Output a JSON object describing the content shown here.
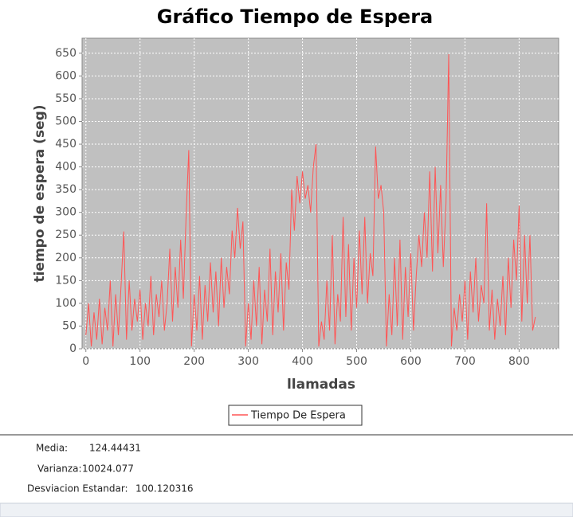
{
  "chart_data": {
    "type": "line",
    "title": "Gráfico Tiempo de Espera",
    "x_label": "llamadas",
    "y_label": "tiempo de espera (seg)",
    "x": [
      0,
      5,
      10,
      15,
      20,
      25,
      30,
      35,
      40,
      45,
      50,
      55,
      60,
      65,
      70,
      75,
      80,
      85,
      90,
      95,
      100,
      105,
      110,
      115,
      120,
      125,
      130,
      135,
      140,
      145,
      150,
      155,
      160,
      165,
      170,
      175,
      180,
      185,
      190,
      195,
      200,
      205,
      210,
      215,
      220,
      225,
      230,
      235,
      240,
      245,
      250,
      255,
      260,
      265,
      270,
      275,
      280,
      285,
      290,
      295,
      300,
      305,
      310,
      315,
      320,
      325,
      330,
      335,
      340,
      345,
      350,
      355,
      360,
      365,
      370,
      375,
      380,
      385,
      390,
      395,
      400,
      405,
      410,
      415,
      420,
      425,
      430,
      435,
      440,
      445,
      450,
      455,
      460,
      465,
      470,
      475,
      480,
      485,
      490,
      495,
      500,
      505,
      510,
      515,
      520,
      525,
      530,
      535,
      540,
      545,
      550,
      555,
      560,
      565,
      570,
      575,
      580,
      585,
      590,
      595,
      600,
      605,
      610,
      615,
      620,
      625,
      630,
      635,
      640,
      645,
      650,
      655,
      660,
      665,
      670,
      675,
      680,
      685,
      690,
      695,
      700,
      705,
      710,
      715,
      720,
      725,
      730,
      735,
      740,
      745,
      750,
      755,
      760,
      765,
      770,
      775,
      780,
      785,
      790,
      795,
      800,
      805,
      810,
      815,
      820,
      825,
      830
    ],
    "series": [
      {
        "name": "Tiempo De Espera",
        "color": "#ff5555",
        "values": [
          30,
          100,
          5,
          80,
          20,
          110,
          10,
          90,
          40,
          150,
          5,
          120,
          30,
          140,
          258,
          20,
          150,
          40,
          110,
          60,
          130,
          20,
          100,
          50,
          160,
          30,
          120,
          70,
          150,
          40,
          100,
          220,
          60,
          180,
          90,
          240,
          110,
          290,
          437,
          5,
          120,
          40,
          160,
          20,
          140,
          60,
          190,
          80,
          170,
          50,
          200,
          90,
          180,
          120,
          260,
          200,
          310,
          220,
          280,
          5,
          100,
          20,
          150,
          50,
          180,
          10,
          130,
          60,
          220,
          30,
          170,
          80,
          210,
          40,
          190,
          130,
          350,
          260,
          380,
          320,
          390,
          330,
          360,
          300,
          400,
          450,
          5,
          60,
          20,
          150,
          40,
          250,
          10,
          120,
          60,
          290,
          70,
          230,
          40,
          200,
          90,
          260,
          120,
          290,
          100,
          210,
          160,
          445,
          330,
          360,
          300,
          5,
          120,
          30,
          200,
          50,
          240,
          20,
          180,
          70,
          210,
          40,
          160,
          250,
          180,
          300,
          200,
          390,
          170,
          400,
          210,
          360,
          180,
          320,
          648,
          5,
          90,
          40,
          120,
          60,
          150,
          20,
          170,
          80,
          200,
          60,
          140,
          100,
          320,
          40,
          130,
          20,
          110,
          50,
          160,
          30,
          200,
          90,
          240,
          150,
          315,
          60,
          250,
          100,
          250,
          40,
          70
        ]
      }
    ],
    "xlim": [
      -7,
      873
    ],
    "ylim": [
      0,
      683
    ],
    "xticks": [
      0,
      100,
      200,
      300,
      400,
      500,
      600,
      700,
      800
    ],
    "yticks": [
      0,
      50,
      100,
      150,
      200,
      250,
      300,
      350,
      400,
      450,
      500,
      550,
      600,
      650
    ],
    "grid": true,
    "legend": "bottom"
  },
  "stats": [
    {
      "label": "Media:",
      "value": "124.44431"
    },
    {
      "label": "Varianza:",
      "value": "10024.077"
    },
    {
      "label": "Desviacion Estandar:",
      "value": "100.120316"
    }
  ]
}
